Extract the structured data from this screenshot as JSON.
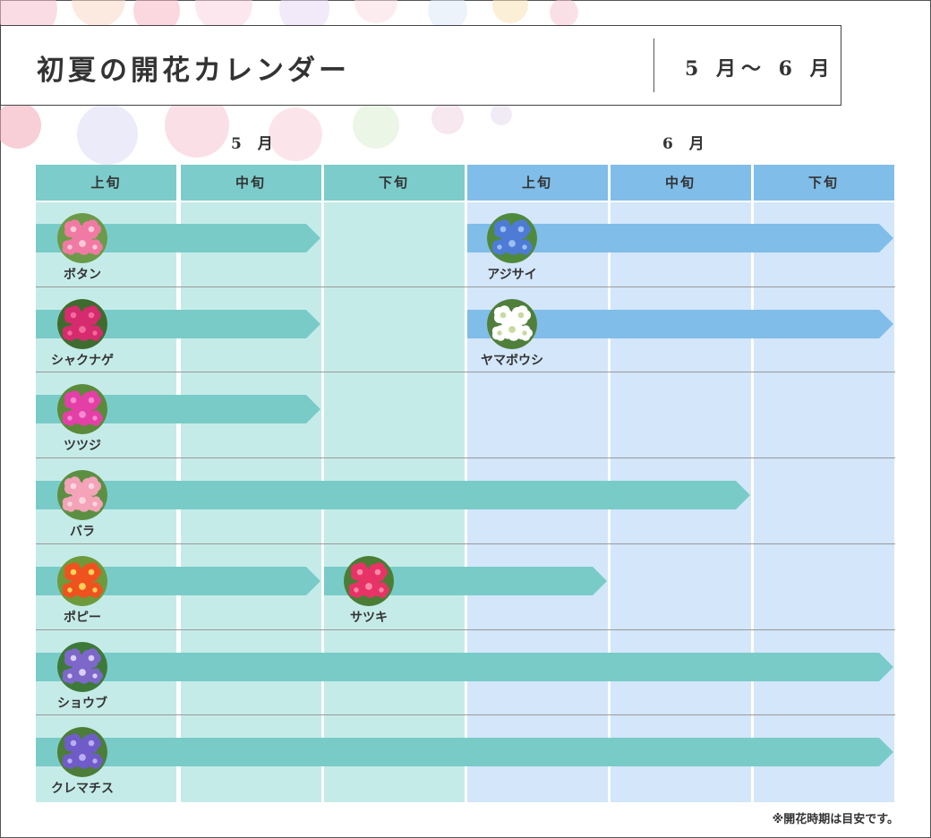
{
  "header": {
    "title": "初夏の開花カレンダー",
    "range": "5 月〜 6 月"
  },
  "months": [
    "5 月",
    "6 月"
  ],
  "columns": [
    {
      "label": "上旬",
      "month": "may"
    },
    {
      "label": "中旬",
      "month": "may"
    },
    {
      "label": "下旬",
      "month": "may"
    },
    {
      "label": "上旬",
      "month": "jun"
    },
    {
      "label": "中旬",
      "month": "jun"
    },
    {
      "label": "下旬",
      "month": "jun"
    }
  ],
  "colors": {
    "may_header": "#7ccccb",
    "jun_header": "#80bde8",
    "may_bar": "#79cbc8",
    "jun_bar": "#80bde8",
    "may_bg": "#c5ebe8",
    "jun_bg": "#d3e6fa"
  },
  "rows": [
    {
      "entries": [
        {
          "name": "ボタン",
          "icon": "botan-flower-icon",
          "start": 0,
          "end": 2,
          "color": "may",
          "petal": "#f07aa3",
          "center": "#f9c9d8",
          "leaf": "#6b9a48"
        },
        {
          "name": "アジサイ",
          "icon": "ajisai-flower-icon",
          "start": 3,
          "end": 6,
          "color": "jun",
          "petal": "#4e7bd6",
          "center": "#9cc0f0",
          "leaf": "#4f8a3c"
        }
      ]
    },
    {
      "entries": [
        {
          "name": "シャクナゲ",
          "icon": "shakunage-flower-icon",
          "start": 0,
          "end": 2,
          "color": "may",
          "petal": "#d62b6e",
          "center": "#f26a9b",
          "leaf": "#3f6b2e"
        },
        {
          "name": "ヤマボウシ",
          "icon": "yamaboushi-flower-icon",
          "start": 3,
          "end": 6,
          "color": "jun",
          "petal": "#ffffff",
          "center": "#c9d9a0",
          "leaf": "#4f7f3a"
        }
      ]
    },
    {
      "entries": [
        {
          "name": "ツツジ",
          "icon": "tsutsuji-flower-icon",
          "start": 0,
          "end": 2,
          "color": "may",
          "petal": "#e43fa7",
          "center": "#f58bd0",
          "leaf": "#5a8a3a"
        }
      ]
    },
    {
      "entries": [
        {
          "name": "バラ",
          "icon": "bara-flower-icon",
          "start": 0,
          "end": 5,
          "color": "may",
          "petal": "#f4a3b9",
          "center": "#fcd6df",
          "leaf": "#5d8f43"
        }
      ]
    },
    {
      "entries": [
        {
          "name": "ポピー",
          "icon": "poppy-flower-icon",
          "start": 0,
          "end": 2,
          "color": "may",
          "petal": "#f0521f",
          "center": "#ffd25a",
          "leaf": "#6e9a3c"
        },
        {
          "name": "サツキ",
          "icon": "satsuki-flower-icon",
          "start": 2,
          "end": 4,
          "color": "may",
          "petal": "#e83366",
          "center": "#f78aa8",
          "leaf": "#4a7d35"
        }
      ]
    },
    {
      "entries": [
        {
          "name": "ショウブ",
          "icon": "shoubu-flower-icon",
          "start": 0,
          "end": 6,
          "color": "may",
          "petal": "#7d67c9",
          "center": "#d8cff2",
          "leaf": "#3d7a3a"
        }
      ]
    },
    {
      "entries": [
        {
          "name": "クレマチス",
          "icon": "clematis-flower-icon",
          "start": 0,
          "end": 6,
          "color": "may",
          "petal": "#6f5cc8",
          "center": "#b9aef0",
          "leaf": "#4c7d39"
        }
      ]
    }
  ],
  "footnote": "※開花時期は目安です。"
}
